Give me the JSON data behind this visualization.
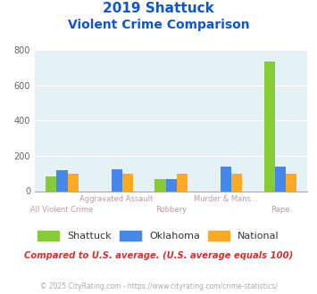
{
  "title_line1": "2019 Shattuck",
  "title_line2": "Violent Crime Comparison",
  "categories": [
    "All Violent Crime",
    "Aggravated Assault",
    "Robbery",
    "Murder & Mans...",
    "Rape"
  ],
  "shattuck": [
    85,
    0,
    70,
    0,
    733
  ],
  "oklahoma": [
    120,
    122,
    68,
    138,
    138
  ],
  "national": [
    100,
    100,
    100,
    100,
    100
  ],
  "shattuck_color": "#88cc33",
  "oklahoma_color": "#4488ee",
  "national_color": "#ffaa22",
  "bg_color": "#e5f2f5",
  "ylim": [
    0,
    800
  ],
  "yticks": [
    0,
    200,
    400,
    600,
    800
  ],
  "title_color": "#1155cc",
  "xlabel_top": [
    "",
    "Aggravated Assault",
    "",
    "Murder & Mans...",
    ""
  ],
  "xlabel_bot": [
    "All Violent Crime",
    "",
    "Robbery",
    "",
    "Rape"
  ],
  "xlabel_color": "#bb99aa",
  "subtitle_note": "Compared to U.S. average. (U.S. average equals 100)",
  "subtitle_color": "#cc3333",
  "footer": "© 2025 CityRating.com - https://www.cityrating.com/crime-statistics/",
  "footer_color": "#aaaaaa",
  "legend_labels": [
    "Shattuck",
    "Oklahoma",
    "National"
  ],
  "bar_width": 0.2
}
